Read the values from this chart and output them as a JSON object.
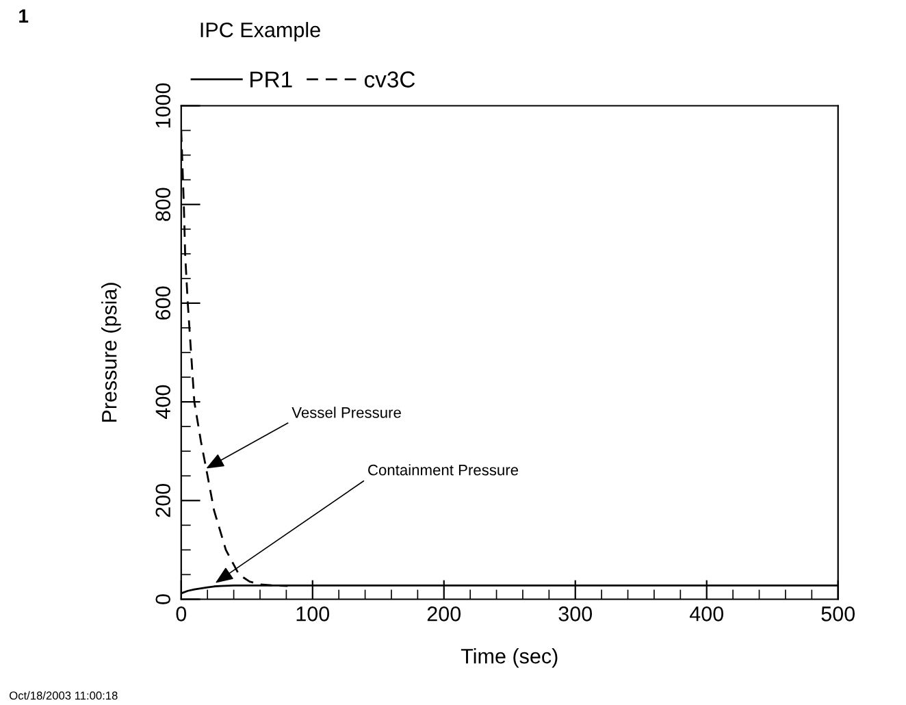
{
  "chart_data": {
    "type": "line",
    "title": "IPC Example",
    "xlabel": "Time (sec)",
    "ylabel": "Pressure (psia)",
    "xlim": [
      0,
      500
    ],
    "xticks": [
      0,
      100,
      200,
      300,
      400,
      500
    ],
    "ylim": [
      0,
      1000
    ],
    "yticks": [
      0,
      200,
      400,
      600,
      800,
      1000
    ],
    "grid": false,
    "legend": "top left",
    "series": [
      {
        "name": "PR1",
        "color": "#000000",
        "line_style": "solid",
        "x": [
          0,
          5,
          10,
          15,
          20,
          25,
          30,
          40,
          60,
          100,
          200,
          300,
          400,
          500
        ],
        "values": [
          12,
          17,
          20,
          22,
          24,
          26,
          27,
          28,
          28,
          28,
          28,
          28,
          28,
          28
        ]
      },
      {
        "name": "cv3C",
        "color": "#000000",
        "line_style": "dashed",
        "x": [
          0,
          2,
          3,
          5,
          10,
          15,
          19,
          25,
          34,
          44,
          52,
          60,
          70,
          81
        ],
        "values": [
          950,
          800,
          700,
          600,
          400,
          320,
          265,
          180,
          100,
          50,
          36,
          30,
          28,
          27
        ]
      }
    ],
    "annotations": [
      {
        "text": "Vessel Pressure",
        "x": 19,
        "y": 265
      },
      {
        "text": "Containment Pressure",
        "x": 26,
        "y": 33
      },
      "1",
      "Oct/18/2003 11:00:18"
    ]
  }
}
